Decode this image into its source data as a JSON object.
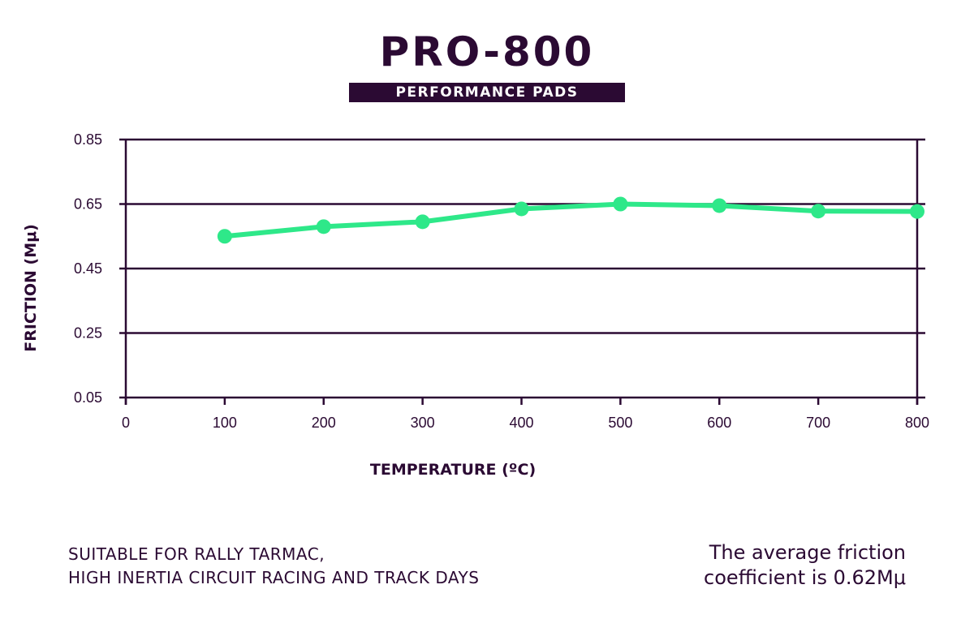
{
  "theme": {
    "dark": "#2b0a33",
    "accent": "#2ee889"
  },
  "header": {
    "title": "PRO-800",
    "subtitle": "PERFORMANCE PADS"
  },
  "chart_data": {
    "type": "line",
    "title": "",
    "xlabel": "TEMPERATURE (ºC)",
    "ylabel": "FRICTION (Mμ)",
    "x_ticks": [
      "0",
      "100",
      "200",
      "300",
      "400",
      "500",
      "600",
      "700",
      "800"
    ],
    "y_ticks": [
      "0.85",
      "0.65",
      "0.45",
      "0.25",
      "0.05"
    ],
    "xlim": [
      0,
      800
    ],
    "ylim": [
      0.05,
      0.85
    ],
    "grid": "horizontal",
    "series": [
      {
        "x": [
          100,
          200,
          300,
          400,
          500,
          600,
          700,
          800
        ],
        "y": [
          0.55,
          0.58,
          0.595,
          0.635,
          0.65,
          0.645,
          0.628,
          0.627
        ]
      }
    ]
  },
  "notes": {
    "left_line1": "SUITABLE FOR RALLY TARMAC,",
    "left_line2": "HIGH INERTIA CIRCUIT RACING AND TRACK DAYS",
    "right_line1": "The average friction",
    "right_line2": "coefficient is 0.62Mμ"
  }
}
